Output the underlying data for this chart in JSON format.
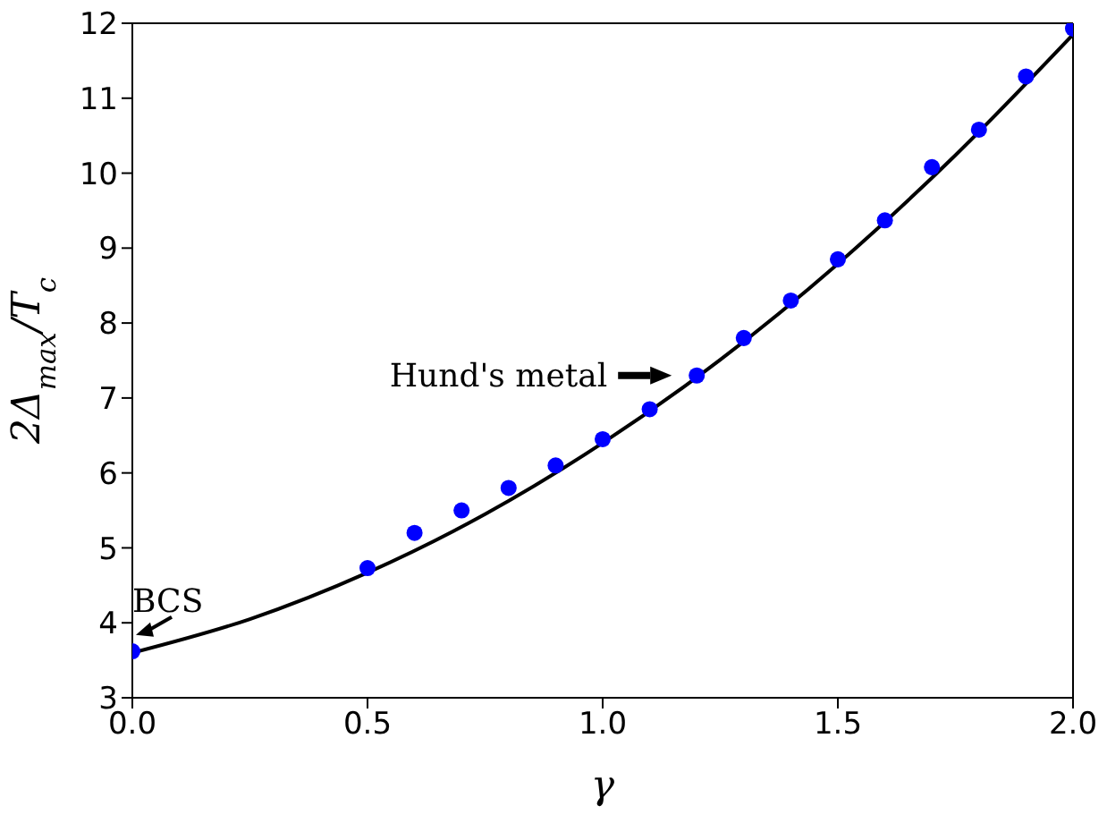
{
  "chart_data": {
    "type": "scatter",
    "xlabel": "γ",
    "ylabel": "2Δ$_{max}$/T$_{c}$",
    "xlim": [
      0,
      2
    ],
    "xticks": [
      {
        "value": 0,
        "label": "0.0"
      },
      {
        "value": 0.5,
        "label": "0.5"
      },
      {
        "value": 1,
        "label": "1.0"
      },
      {
        "value": 1.5,
        "label": "1.5"
      },
      {
        "value": 2,
        "label": "2.0"
      }
    ],
    "ylim": [
      3,
      12
    ],
    "yticks": [
      3,
      4,
      5,
      6,
      7,
      8,
      9,
      10,
      11,
      12
    ],
    "marker": "circle",
    "series": [
      {
        "type": "line",
        "color": "#000000",
        "line_style": "solid",
        "marker": "none",
        "x": [
          0,
          0.25,
          0.5,
          0.75,
          1,
          1.25,
          1.5,
          1.75,
          2
        ],
        "values": [
          3.6,
          4.05,
          4.67,
          5.45,
          6.4,
          7.51,
          8.79,
          10.24,
          11.85
        ]
      },
      {
        "color": "#0000ff",
        "x": [
          0,
          0.5,
          0.6,
          0.7,
          0.8,
          0.9,
          1,
          1.1,
          1.2,
          1.3,
          1.4,
          1.5,
          1.6,
          1.7,
          1.8,
          1.9,
          2
        ],
        "values": [
          3.62,
          4.73,
          5.2,
          5.5,
          5.8,
          6.1,
          6.45,
          6.85,
          7.3,
          7.8,
          8.3,
          8.85,
          9.37,
          10.08,
          10.58,
          11.29,
          11.93
        ]
      }
    ],
    "annotations": [
      {
        "text": "BCS",
        "x": 0,
        "y": 3.6
      },
      {
        "text": "Hund's metal",
        "x": 1.2,
        "y": 7.3
      }
    ]
  }
}
